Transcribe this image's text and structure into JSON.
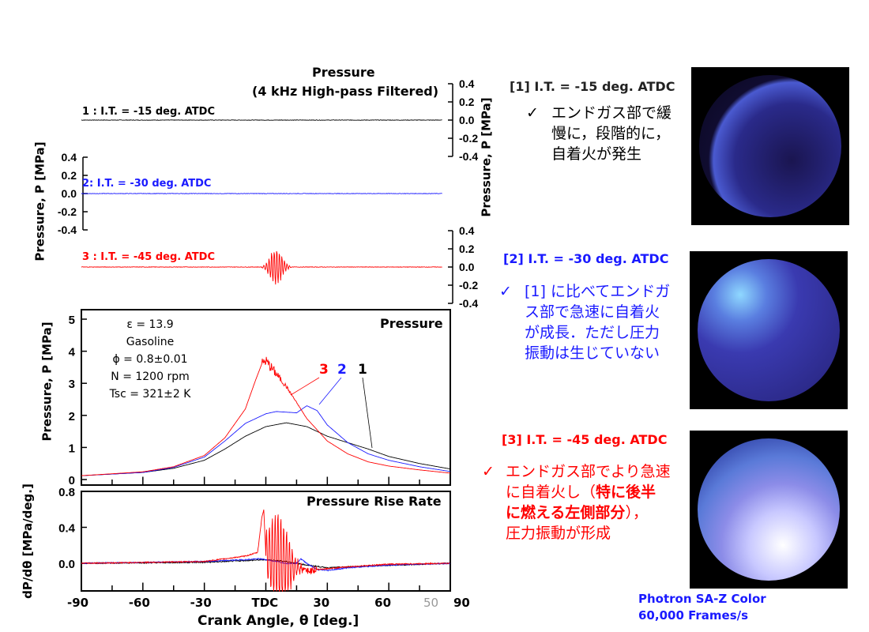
{
  "top_panel": {
    "title": "Pressure",
    "subtitle": "(4 kHz High-pass Filtered)",
    "y_label": "Pressure, P [MPa]",
    "ticks": [
      "0.4",
      "0.2",
      "0.0",
      "-0.2",
      "-0.4"
    ],
    "traces": [
      {
        "label": "1 : I.T. = -15 deg. ATDC",
        "color": "#000000"
      },
      {
        "label": "2: I.T. = -30 deg. ATDC",
        "color": "#1a1aff"
      },
      {
        "label": "3 : I.T. = -45 deg. ATDC",
        "color": "#ff0000"
      }
    ]
  },
  "chart_data": [
    {
      "type": "line",
      "title": "Pressure",
      "ylabel": "Pressure, P [MPa]",
      "xlabel": "Crank Angle, θ [deg.]",
      "xlim": [
        -90,
        90
      ],
      "ylim": [
        0,
        5
      ],
      "yticks": [
        "0",
        "1",
        "2",
        "3",
        "4",
        "5"
      ],
      "series": [
        {
          "name": "1",
          "color": "#000000",
          "x": [
            -90,
            -60,
            -45,
            -30,
            -20,
            -10,
            0,
            10,
            20,
            30,
            40,
            50,
            60,
            75,
            90
          ],
          "y": [
            0.12,
            0.22,
            0.35,
            0.6,
            0.95,
            1.35,
            1.65,
            1.77,
            1.65,
            1.35,
            1.15,
            0.95,
            0.72,
            0.5,
            0.33
          ]
        },
        {
          "name": "2",
          "color": "#1a1aff",
          "x": [
            -90,
            -60,
            -45,
            -30,
            -20,
            -10,
            0,
            5,
            10,
            15,
            20,
            25,
            30,
            40,
            50,
            60,
            75,
            90
          ],
          "y": [
            0.12,
            0.22,
            0.38,
            0.7,
            1.2,
            1.75,
            2.05,
            2.12,
            2.1,
            2.08,
            2.3,
            2.15,
            1.7,
            1.15,
            0.8,
            0.6,
            0.4,
            0.25
          ]
        },
        {
          "name": "3",
          "color": "#ff0000",
          "x": [
            -90,
            -60,
            -45,
            -30,
            -20,
            -10,
            -5,
            -2,
            0,
            5,
            10,
            15,
            20,
            30,
            40,
            50,
            60,
            75,
            90
          ],
          "y": [
            0.12,
            0.24,
            0.4,
            0.75,
            1.3,
            2.2,
            3.1,
            3.6,
            3.7,
            3.3,
            2.9,
            2.4,
            1.9,
            1.2,
            0.8,
            0.55,
            0.42,
            0.3,
            0.2
          ]
        }
      ],
      "annotations": {
        "conditions": [
          "ε = 13.9",
          "Gasoline",
          "ϕ = 0.8±0.01",
          "N = 1200 rpm",
          "Tsc = 321±2 K"
        ],
        "labels": [
          "3",
          "2",
          "1"
        ]
      }
    },
    {
      "type": "line",
      "title": "Pressure Rise Rate",
      "ylabel": "dP/dθ [MPa/deg.]",
      "xlabel": "Crank Angle, θ [deg.]",
      "xlim": [
        -90,
        90
      ],
      "ylim": [
        -0.3,
        0.8
      ],
      "yticks": [
        "0.8",
        "0.4",
        "0.0"
      ],
      "xticks": [
        "-90",
        "-60",
        "-30",
        "TDC",
        "30",
        "60",
        "90"
      ],
      "extra_tick": "50",
      "series": [
        {
          "name": "1",
          "color": "#000000",
          "x": [
            -90,
            -30,
            -10,
            0,
            10,
            20,
            30,
            40,
            50,
            90
          ],
          "y": [
            0,
            0.01,
            0.03,
            0.04,
            0.02,
            -0.02,
            -0.05,
            -0.04,
            -0.03,
            0
          ]
        },
        {
          "name": "2",
          "color": "#1a1aff",
          "x": [
            -90,
            -30,
            -10,
            -3,
            0,
            10,
            15,
            17,
            20,
            25,
            30,
            40,
            60,
            90
          ],
          "y": [
            0,
            0.02,
            0.04,
            0.05,
            0.04,
            0,
            0.0,
            0.05,
            0,
            -0.07,
            -0.08,
            -0.05,
            -0.02,
            0
          ]
        },
        {
          "name": "3",
          "color": "#ff0000",
          "x": [
            -90,
            -30,
            -10,
            -4,
            -2,
            -1,
            0,
            15,
            20,
            25,
            30,
            40,
            60,
            90
          ],
          "y": [
            0,
            0.02,
            0.08,
            0.12,
            0.5,
            0.6,
            0.1,
            -0.05,
            -0.08,
            -0.07,
            -0.06,
            -0.04,
            -0.01,
            0
          ]
        }
      ]
    }
  ],
  "cases": [
    {
      "heading": "[1] I.T. = -15 deg. ATDC",
      "color": "#222222",
      "lines": [
        "エンドガス部で緩",
        "慢に，段階的に，",
        "自着火が発生"
      ]
    },
    {
      "heading": "[2] I.T. = -30 deg. ATDC",
      "color": "#1a1aff",
      "lines": [
        "[1] に比べてエンドガ",
        "ス部で急速に自着火",
        "が成長．ただし圧力",
        "振動は生じていない"
      ]
    },
    {
      "heading": "[3] I.T. = -45 deg. ATDC",
      "color": "#ff0000",
      "lines": [
        "エンドガス部でより急速",
        "に自着火し（",
        "特に後半",
        "に燃える左側部分",
        "），",
        "圧力振動が形成"
      ]
    }
  ],
  "check": "✓",
  "camera": {
    "line1": "Photron SA-Z Color",
    "line2": "60,000 Frames/s"
  }
}
